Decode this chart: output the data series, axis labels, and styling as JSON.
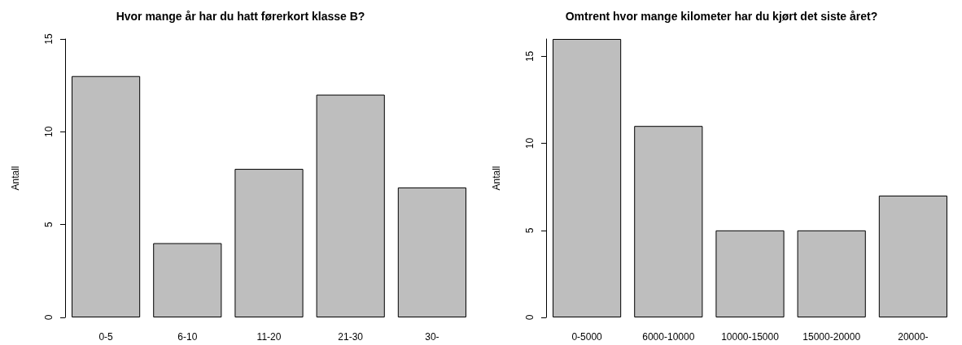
{
  "chart_data": [
    {
      "type": "bar",
      "title": "Hvor mange år har du hatt førerkort klasse B?",
      "ylabel": "Antall",
      "categories": [
        "0-5",
        "6-10",
        "11-20",
        "21-30",
        "30-"
      ],
      "values": [
        13,
        4,
        8,
        12,
        7
      ],
      "color": "#bebebe",
      "ylim": [
        0,
        15
      ],
      "yticks": [
        0,
        5,
        10,
        15
      ],
      "grid": false
    },
    {
      "type": "bar",
      "title": "Omtrent hvor mange kilometer har du kjørt det siste året?",
      "ylabel": "Antall",
      "categories": [
        "0-5000",
        "6000-10000",
        "10000-15000",
        "15000-20000",
        "20000-"
      ],
      "values": [
        16,
        11,
        5,
        5,
        7
      ],
      "color": "#bebebe",
      "ylim": [
        0,
        16
      ],
      "yticks": [
        0,
        5,
        10,
        15
      ],
      "grid": false
    }
  ]
}
